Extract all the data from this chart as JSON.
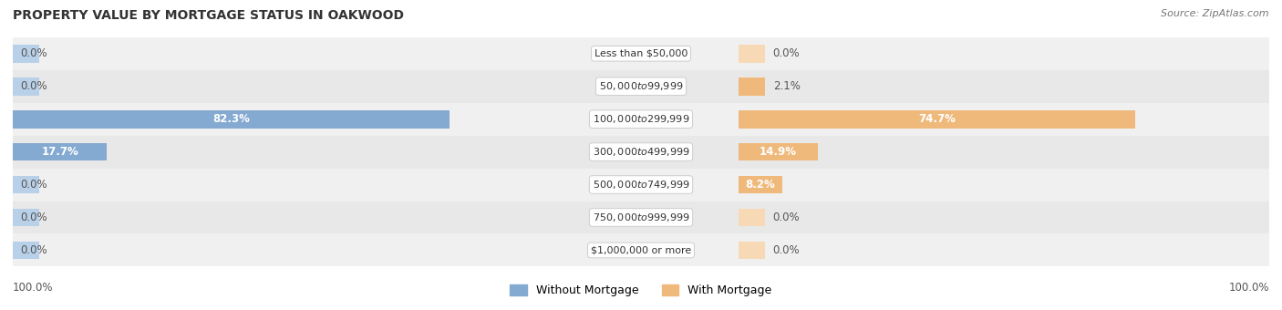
{
  "title": "PROPERTY VALUE BY MORTGAGE STATUS IN OAKWOOD",
  "source": "Source: ZipAtlas.com",
  "categories": [
    "Less than $50,000",
    "$50,000 to $99,999",
    "$100,000 to $299,999",
    "$300,000 to $499,999",
    "$500,000 to $749,999",
    "$750,000 to $999,999",
    "$1,000,000 or more"
  ],
  "without_mortgage": [
    0.0,
    0.0,
    82.3,
    17.7,
    0.0,
    0.0,
    0.0
  ],
  "with_mortgage": [
    0.0,
    2.1,
    74.7,
    14.9,
    8.2,
    0.0,
    0.0
  ],
  "without_mortgage_color": "#85aad1",
  "with_mortgage_color": "#f0b97c",
  "without_mortgage_color_light": "#b8d0e8",
  "with_mortgage_color_light": "#f7d9b5",
  "bar_height": 0.55,
  "min_stub": 5.0,
  "xlim": [
    0,
    100
  ],
  "title_fontsize": 10,
  "source_fontsize": 8,
  "label_fontsize": 8.5,
  "category_fontsize": 8,
  "legend_fontsize": 9,
  "row_colors": [
    "#f0f0f0",
    "#e8e8e8"
  ],
  "figsize": [
    14.06,
    3.4
  ],
  "dpi": 100
}
